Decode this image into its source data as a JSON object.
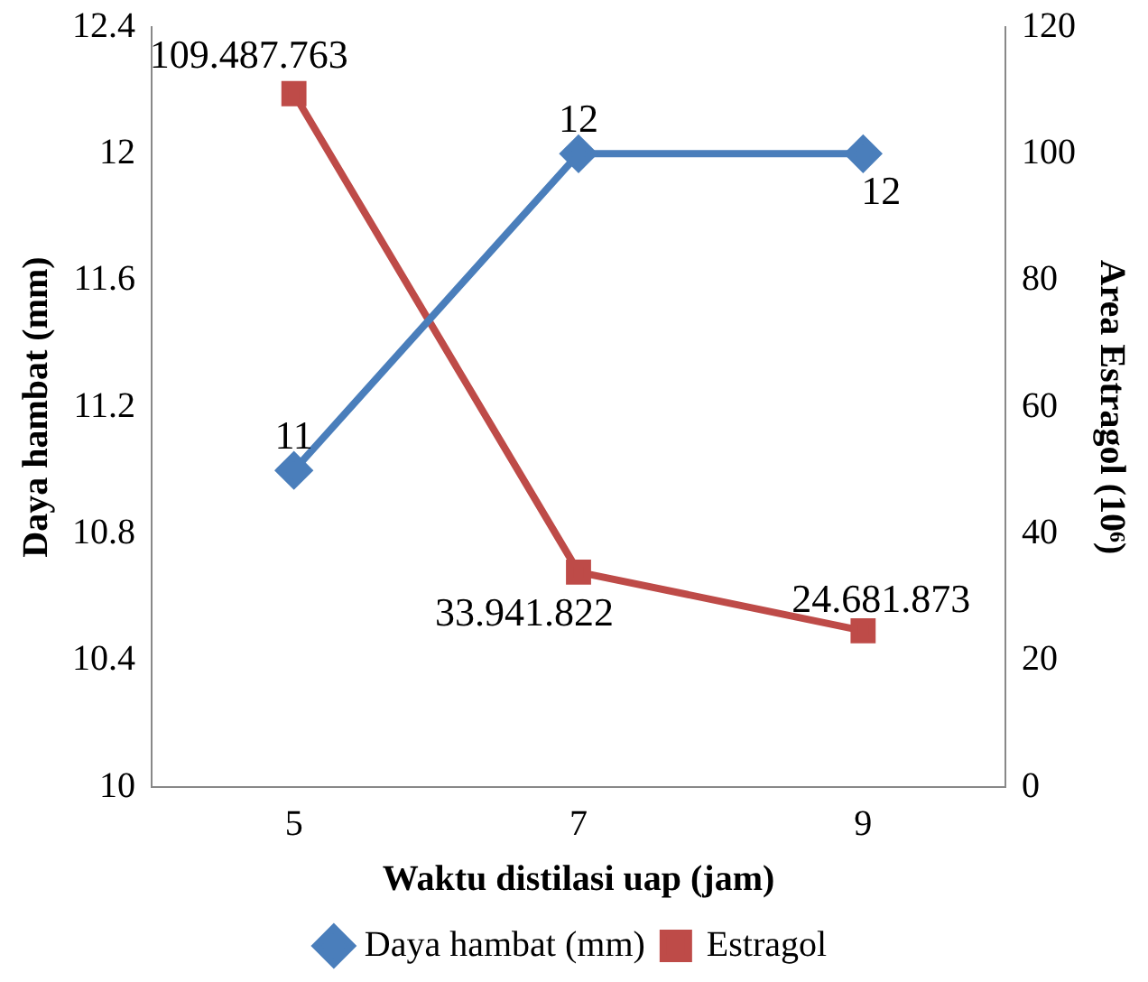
{
  "chart_data": {
    "type": "line",
    "xlabel": "Waktu distilasi uap (jam)",
    "ylabel": "Daya hambat (mm)",
    "y2label": "Area Estragol (10⁶)",
    "categories": [
      "5",
      "7",
      "9"
    ],
    "series": [
      {
        "name": "Daya hambat (mm)",
        "color": "#4a7ebb",
        "marker": "diamond",
        "values": [
          11,
          12,
          12
        ],
        "value_labels": [
          "11",
          "12",
          "12"
        ]
      },
      {
        "name": "Estragol",
        "color": "#be4b48",
        "marker": "square",
        "axis": "y2",
        "values": [
          109.487763,
          33.941822,
          24.681873
        ]
      }
    ],
    "ylim": [
      10,
      12.4
    ],
    "yticks": [
      10,
      10.4,
      10.8,
      11.2,
      11.6,
      12,
      12.4
    ],
    "y2lim": [
      0,
      120
    ],
    "y2ticks": [
      0,
      20,
      40,
      60,
      80,
      100,
      120
    ],
    "annotations": [
      "109.487.763",
      "33.941.822",
      "24.681.873"
    ],
    "grid": false,
    "legend": "bottom"
  }
}
